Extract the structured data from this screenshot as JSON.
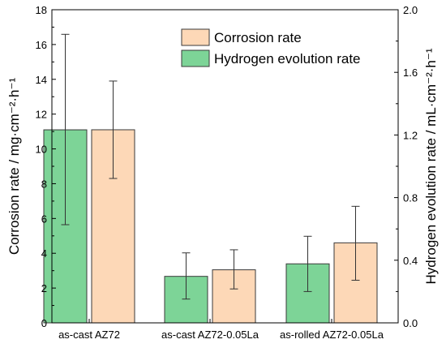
{
  "chart_data": {
    "type": "bar",
    "categories": [
      "as-cast  AZ72",
      "as-cast AZ72-0.05La",
      "as-rolled AZ72-0.05La"
    ],
    "series": [
      {
        "name": "Hydrogen evolution rate",
        "axis": "right",
        "color": "#7dd497",
        "values": [
          1.233,
          0.297,
          0.377
        ],
        "error_low": [
          0.627,
          0.152,
          0.2
        ],
        "error_high": [
          1.843,
          0.447,
          0.553
        ]
      },
      {
        "name": "Corrosion rate",
        "axis": "left",
        "color": "#fdd8b7",
        "values": [
          11.1,
          3.05,
          4.6
        ],
        "error_low": [
          8.3,
          1.95,
          2.45
        ],
        "error_high": [
          13.9,
          4.2,
          6.7
        ]
      }
    ],
    "ylabel": "Corrosion rate / mg·cm⁻²·h⁻¹",
    "ylabel_right": "Hydrogen evolution rate / mL·cm⁻²·h⁻¹",
    "ylim": [
      0,
      18
    ],
    "ylim_right": [
      0,
      2.0
    ],
    "yticks": [
      "0",
      "2",
      "4",
      "6",
      "8",
      "10",
      "12",
      "14",
      "16",
      "18"
    ],
    "yticks_right": [
      "0.0",
      "0.4",
      "0.8",
      "1.2",
      "1.6",
      "2.0"
    ],
    "legend": {
      "placement": "top-right",
      "entries": [
        {
          "label": "Corrosion rate",
          "color": "#fdd8b7"
        },
        {
          "label": "Hydrogen evolution rate",
          "color": "#7dd497"
        }
      ]
    },
    "grid": false
  }
}
